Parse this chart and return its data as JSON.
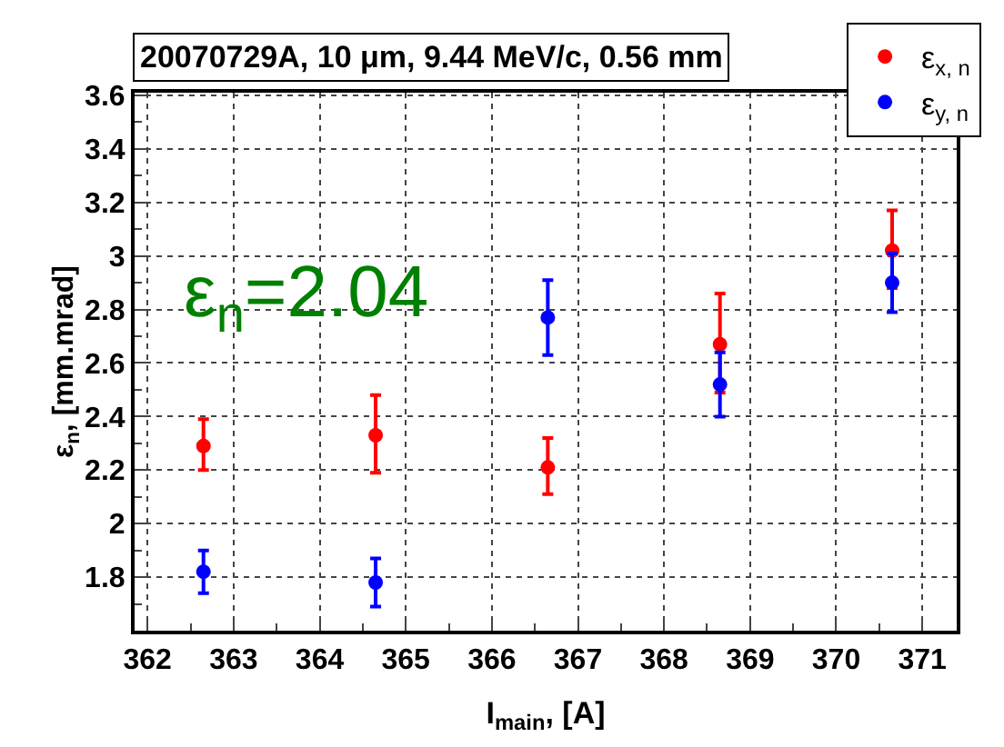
{
  "chart_data": {
    "type": "scatter",
    "title": "20070729A, 10 μm, 9.44 MeV/c, 0.56 mm",
    "xlabel": "I$_{main}$, [A]",
    "ylabel": "ε$_{n}$, [mm.mrad]",
    "x": [
      362.65,
      364.65,
      366.65,
      368.65,
      370.65
    ],
    "series": [
      {
        "name": "ε$_{x, n}$",
        "color": "#ff0000",
        "values": [
          2.29,
          2.33,
          2.21,
          2.67,
          3.02
        ],
        "errors": [
          [
            2.2,
            2.39
          ],
          [
            2.19,
            2.48
          ],
          [
            2.11,
            2.32
          ],
          [
            2.49,
            2.86
          ],
          [
            2.88,
            3.17
          ]
        ]
      },
      {
        "name": "ε$_{y, n}$",
        "color": "#0000ff",
        "values": [
          1.82,
          1.78,
          2.77,
          2.52,
          2.9
        ],
        "errors": [
          [
            1.74,
            1.9
          ],
          [
            1.69,
            1.87
          ],
          [
            2.63,
            2.91
          ],
          [
            2.4,
            2.64
          ],
          [
            2.79,
            3.01
          ]
        ]
      }
    ],
    "annotations": [
      "ε$_{n}$=2.04"
    ],
    "xlim": [
      361.85,
      371.4
    ],
    "xticks": [
      362,
      363,
      364,
      365,
      366,
      367,
      368,
      369,
      370,
      371
    ],
    "ylim": [
      1.6,
      3.61
    ],
    "yticks": [
      1.8,
      2,
      2.2,
      2.4,
      2.6,
      2.8,
      3,
      3.2,
      3.4,
      3.6
    ],
    "grid": true,
    "legend": "top right",
    "marker": "circle"
  }
}
